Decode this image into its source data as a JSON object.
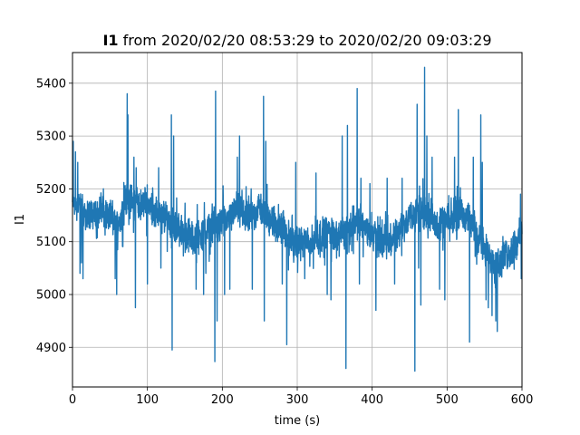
{
  "chart_data": {
    "type": "line",
    "title_bold": "I1",
    "title_rest": " from 2020/02/20 08:53:29 to 2020/02/20 09:03:29",
    "xlabel": "time (s)",
    "ylabel": "I1",
    "xlim": [
      0,
      600
    ],
    "ylim": [
      4825,
      5458
    ],
    "xticks": [
      0,
      100,
      200,
      300,
      400,
      500,
      600
    ],
    "yticks": [
      4900,
      5000,
      5100,
      5200,
      5300,
      5400
    ],
    "grid": true,
    "line_color": "#1f77b4",
    "keypoints": [
      [
        0,
        5180
      ],
      [
        20,
        5150
      ],
      [
        40,
        5160
      ],
      [
        60,
        5130
      ],
      [
        73,
        5180
      ],
      [
        90,
        5170
      ],
      [
        100,
        5175
      ],
      [
        115,
        5150
      ],
      [
        130,
        5140
      ],
      [
        145,
        5120
      ],
      [
        160,
        5110
      ],
      [
        175,
        5115
      ],
      [
        190,
        5130
      ],
      [
        205,
        5140
      ],
      [
        220,
        5160
      ],
      [
        235,
        5145
      ],
      [
        250,
        5165
      ],
      [
        265,
        5145
      ],
      [
        280,
        5120
      ],
      [
        300,
        5095
      ],
      [
        320,
        5100
      ],
      [
        340,
        5120
      ],
      [
        360,
        5110
      ],
      [
        380,
        5140
      ],
      [
        395,
        5120
      ],
      [
        410,
        5100
      ],
      [
        425,
        5100
      ],
      [
        440,
        5130
      ],
      [
        460,
        5160
      ],
      [
        475,
        5150
      ],
      [
        490,
        5130
      ],
      [
        505,
        5140
      ],
      [
        520,
        5160
      ],
      [
        535,
        5130
      ],
      [
        550,
        5080
      ],
      [
        570,
        5060
      ],
      [
        585,
        5080
      ],
      [
        600,
        5120
      ]
    ],
    "spikes": [
      [
        1,
        5290
      ],
      [
        4,
        5270
      ],
      [
        7,
        5250
      ],
      [
        10,
        5040
      ],
      [
        12,
        5060
      ],
      [
        14,
        5030
      ],
      [
        57,
        5030
      ],
      [
        59,
        5000
      ],
      [
        73,
        5380
      ],
      [
        74,
        5340
      ],
      [
        82,
        5260
      ],
      [
        84,
        4975
      ],
      [
        85,
        5240
      ],
      [
        100,
        5020
      ],
      [
        115,
        5240
      ],
      [
        118,
        5050
      ],
      [
        132,
        5340
      ],
      [
        133,
        4895
      ],
      [
        135,
        5300
      ],
      [
        165,
        5010
      ],
      [
        175,
        5000
      ],
      [
        178,
        5040
      ],
      [
        190,
        4873
      ],
      [
        191,
        5385
      ],
      [
        193,
        4950
      ],
      [
        203,
        5000
      ],
      [
        210,
        5010
      ],
      [
        220,
        5260
      ],
      [
        223,
        5300
      ],
      [
        240,
        5010
      ],
      [
        255,
        5375
      ],
      [
        256,
        4950
      ],
      [
        258,
        5290
      ],
      [
        280,
        5020
      ],
      [
        286,
        4905
      ],
      [
        298,
        5250
      ],
      [
        310,
        5030
      ],
      [
        325,
        5230
      ],
      [
        340,
        5000
      ],
      [
        345,
        4990
      ],
      [
        360,
        5300
      ],
      [
        365,
        4860
      ],
      [
        367,
        5320
      ],
      [
        380,
        5390
      ],
      [
        383,
        5020
      ],
      [
        385,
        5220
      ],
      [
        397,
        5210
      ],
      [
        405,
        4970
      ],
      [
        420,
        5220
      ],
      [
        430,
        5020
      ],
      [
        440,
        5220
      ],
      [
        457,
        4855
      ],
      [
        460,
        5360
      ],
      [
        462,
        5050
      ],
      [
        465,
        4980
      ],
      [
        470,
        5430
      ],
      [
        473,
        5300
      ],
      [
        480,
        5260
      ],
      [
        490,
        5010
      ],
      [
        497,
        4990
      ],
      [
        510,
        5260
      ],
      [
        515,
        5350
      ],
      [
        530,
        4910
      ],
      [
        535,
        5260
      ],
      [
        545,
        5340
      ],
      [
        547,
        5250
      ],
      [
        552,
        4990
      ],
      [
        555,
        4975
      ],
      [
        560,
        4960
      ],
      [
        565,
        4950
      ],
      [
        567,
        4930
      ],
      [
        590,
        5120
      ],
      [
        598,
        5190
      ],
      [
        599,
        5030
      ]
    ]
  }
}
